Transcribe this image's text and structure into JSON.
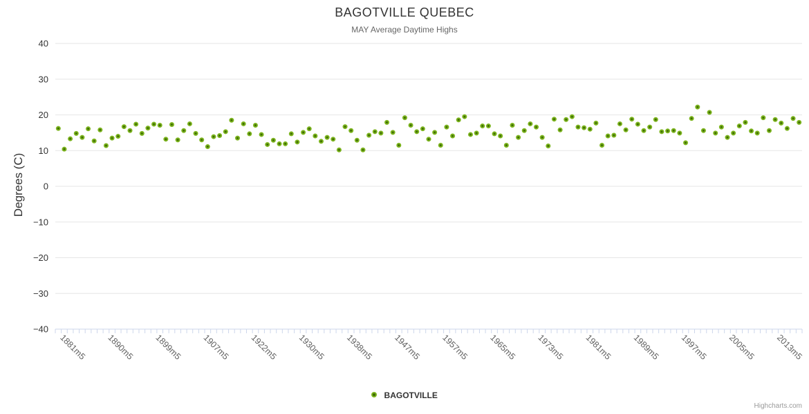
{
  "credits": "Highcharts.com",
  "colors": {
    "marker_fill": "#3e6c04",
    "marker_stroke": "#7cb41e",
    "gridline": "#e6e6e6",
    "axis_line": "#ccd6eb",
    "y_label_text": "#333333",
    "x_label_text": "#606060",
    "credits_text": "#999999"
  },
  "chart_data": {
    "type": "scatter",
    "title": "BAGOTVILLE QUEBEC",
    "subtitle": "MAY Average Daytime Highs",
    "ylabel": "Degrees (C)",
    "ylim": [
      -40,
      40
    ],
    "y_tick_interval": 10,
    "grid": "horizontal",
    "legend_position": "bottom-center",
    "x_tick_labels": [
      "1881m5",
      "1890m5",
      "1899m5",
      "1907m5",
      "1922m5",
      "1930m5",
      "1938m5",
      "1947m5",
      "1957m5",
      "1965m5",
      "1973m5",
      "1981m5",
      "1989m5",
      "1997m5",
      "2005m5",
      "2013m5"
    ],
    "x_label_step": 8,
    "series": [
      {
        "name": "BAGOTVILLE",
        "values": [
          16.2,
          10.4,
          13.3,
          14.8,
          13.7,
          16.1,
          12.7,
          15.8,
          11.4,
          13.5,
          14.0,
          16.7,
          15.6,
          17.4,
          14.8,
          16.3,
          17.4,
          17.1,
          13.2,
          17.3,
          13.0,
          15.6,
          17.5,
          14.8,
          13.0,
          11.1,
          13.9,
          14.2,
          15.3,
          18.5,
          13.5,
          17.5,
          14.7,
          17.1,
          14.5,
          11.7,
          12.9,
          11.9,
          11.9,
          14.7,
          12.4,
          15.1,
          16.1,
          14.1,
          12.6,
          13.7,
          13.2,
          10.2,
          16.7,
          15.6,
          12.9,
          10.2,
          14.3,
          15.3,
          14.9,
          17.9,
          15.1,
          11.5,
          19.2,
          17.1,
          15.3,
          16.1,
          13.2,
          15.1,
          11.5,
          16.6,
          14.1,
          18.6,
          19.5,
          14.5,
          14.9,
          16.9,
          16.9,
          14.7,
          14.1,
          11.5,
          17.1,
          13.7,
          15.6,
          17.5,
          16.6,
          13.7,
          11.3,
          18.8,
          15.8,
          18.7,
          19.5,
          16.6,
          16.4,
          16.0,
          17.7,
          11.5,
          14.1,
          14.3,
          17.5,
          15.8,
          18.8,
          17.4,
          15.6,
          16.6,
          18.7,
          15.3,
          15.5,
          15.6,
          14.9,
          12.2,
          19.0,
          22.2,
          15.6,
          20.7,
          14.9,
          16.6,
          13.7,
          14.9,
          16.9,
          17.9,
          15.5,
          14.9,
          19.2,
          15.6,
          18.7,
          17.7,
          16.2,
          19.0,
          17.9
        ]
      }
    ]
  }
}
